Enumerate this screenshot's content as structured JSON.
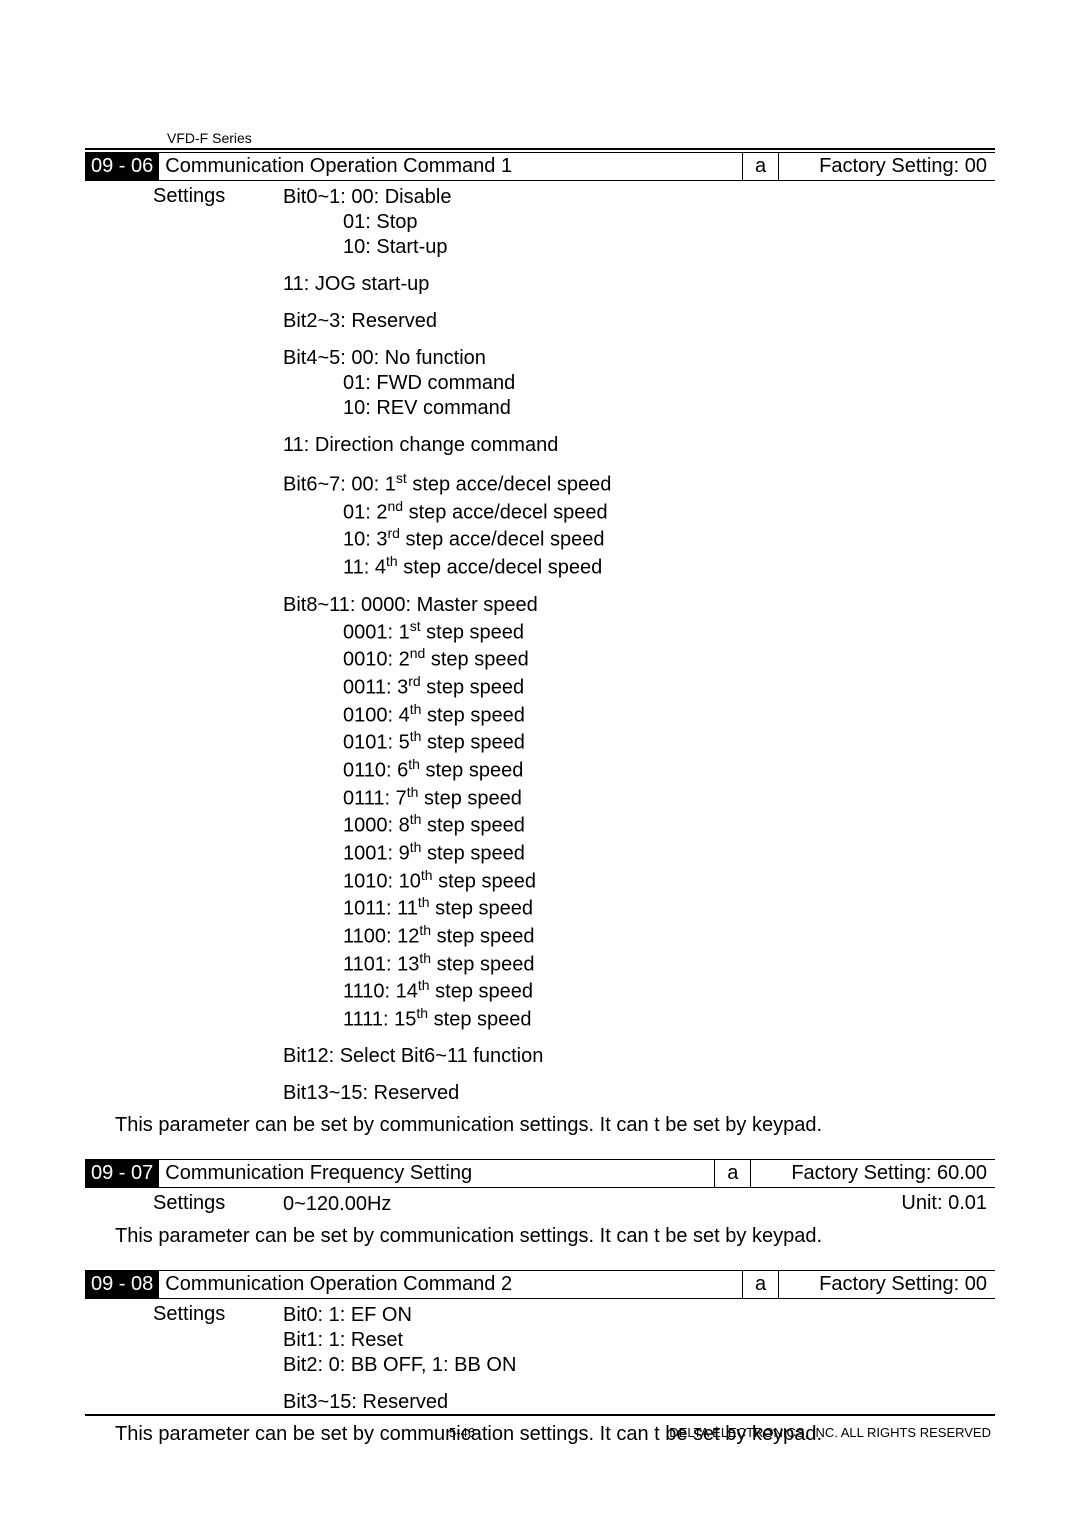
{
  "series_label": "VFD-F Series",
  "params": [
    {
      "code": "09 - 06",
      "title": "Communication Operation Command 1",
      "a": "a",
      "factory_label": "Factory Setting:",
      "factory_value": "00",
      "settings_label": "Settings",
      "groups": [
        {
          "lines": [
            {
              "text": "Bit0~1: 00: Disable",
              "cls": ""
            },
            {
              "text": "01: Stop",
              "cls": "indent1"
            },
            {
              "text": "10: Start-up",
              "cls": "indent1"
            }
          ]
        },
        {
          "lines": [
            {
              "text": "11: JOG start-up",
              "cls": ""
            }
          ]
        },
        {
          "lines": [
            {
              "text": "Bit2~3: Reserved",
              "cls": ""
            }
          ]
        },
        {
          "lines": [
            {
              "text": "Bit4~5: 00: No function",
              "cls": ""
            },
            {
              "text": "01: FWD command",
              "cls": "indent1"
            },
            {
              "text": "10: REV command",
              "cls": "indent1"
            }
          ]
        },
        {
          "lines": [
            {
              "text": "11: Direction change command",
              "cls": ""
            }
          ]
        },
        {
          "lines_html": [
            {
              "html": "Bit6~7: 00: 1<sup>st</sup> step acce/decel speed",
              "cls": ""
            },
            {
              "html": "01: 2<sup>nd</sup> step acce/decel speed",
              "cls": "indent1"
            },
            {
              "html": "10: 3<sup>rd</sup> step acce/decel speed",
              "cls": "indent1"
            },
            {
              "html": "11: 4<sup>th</sup> step acce/decel speed",
              "cls": "indent1"
            }
          ]
        },
        {
          "lines_html": [
            {
              "html": "Bit8~11: 0000: Master speed",
              "cls": ""
            },
            {
              "html": "0001: 1<sup>st</sup> step speed",
              "cls": "indent1"
            },
            {
              "html": "0010: 2<sup>nd</sup> step speed",
              "cls": "indent1"
            },
            {
              "html": "0011: 3<sup>rd</sup> step speed",
              "cls": "indent1"
            },
            {
              "html": "0100: 4<sup>th</sup> step speed",
              "cls": "indent1"
            },
            {
              "html": "0101: 5<sup>th</sup> step speed",
              "cls": "indent1"
            },
            {
              "html": "0110: 6<sup>th</sup> step speed",
              "cls": "indent1"
            },
            {
              "html": "0111: 7<sup>th</sup> step speed",
              "cls": "indent1"
            },
            {
              "html": "1000: 8<sup>th</sup> step speed",
              "cls": "indent1"
            },
            {
              "html": "1001: 9<sup>th</sup> step speed",
              "cls": "indent1"
            },
            {
              "html": "1010: 10<sup>th</sup> step speed",
              "cls": "indent1"
            },
            {
              "html": "1011: 11<sup>th</sup> step speed",
              "cls": "indent1"
            },
            {
              "html": "1100: 12<sup>th</sup> step speed",
              "cls": "indent1"
            },
            {
              "html": "1101: 13<sup>th</sup> step speed",
              "cls": "indent1"
            },
            {
              "html": "1110: 14<sup>th</sup> step speed",
              "cls": "indent1"
            },
            {
              "html": "1111: 15<sup>th</sup> step speed",
              "cls": "indent1"
            }
          ]
        },
        {
          "lines": [
            {
              "text": "Bit12: Select Bit6~11 function",
              "cls": ""
            }
          ]
        },
        {
          "lines": [
            {
              "text": "Bit13~15: Reserved",
              "cls": ""
            }
          ]
        }
      ],
      "note": "This parameter can be set by communication settings. It can t be set by keypad."
    },
    {
      "code": "09 - 07",
      "title": "Communication Frequency Setting",
      "a": "a",
      "factory_label": "Factory Setting:",
      "factory_value": "60.00",
      "settings_label": "Settings",
      "settings_value": "0~120.00Hz",
      "unit_label": "Unit: 0.01",
      "note": "This parameter can be set by communication settings. It can t be set by keypad."
    },
    {
      "code": "09 - 08",
      "title": "Communication Operation Command 2",
      "a": "a",
      "factory_label": "Factory Setting:",
      "factory_value": "00",
      "settings_label": "Settings",
      "groups": [
        {
          "lines": [
            {
              "text": "Bit0: 1: EF ON",
              "cls": ""
            },
            {
              "text": "Bit1: 1: Reset",
              "cls": ""
            },
            {
              "text": "Bit2: 0: BB OFF, 1: BB ON",
              "cls": ""
            }
          ]
        },
        {
          "lines": [
            {
              "text": "Bit3~15: Reserved",
              "cls": ""
            }
          ]
        }
      ],
      "note": "This parameter can be set by communication settings. It can t be set by keypad."
    }
  ],
  "footer": {
    "page": "5-46",
    "copyright": "DELTA ELECTRONICS, INC. ALL RIGHTS RESERVED"
  }
}
